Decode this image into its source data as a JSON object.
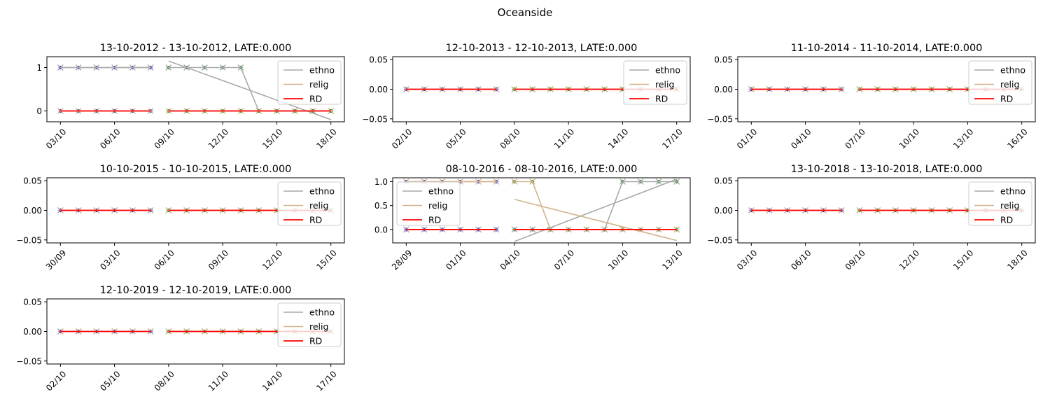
{
  "figure": {
    "suptitle": "Oceanside"
  },
  "colors": {
    "ethno": "#a9a9a9",
    "relig": "#d2b48c",
    "rd": "#ff0000",
    "pre_dot": "#0000ff",
    "post_dot": "#008000"
  },
  "chart_data": [
    {
      "type": "line",
      "title": "13-10-2012 - 13-10-2012, LATE:0.000",
      "x_start": "2012-10-03",
      "x_end": "2012-10-18",
      "xticks": [
        "03/10",
        "06/10",
        "09/10",
        "12/10",
        "15/10",
        "18/10"
      ],
      "ylim": [
        -0.25,
        1.25
      ],
      "yticks": [
        0,
        1
      ],
      "yticklabels": [
        "0",
        "1"
      ],
      "legend": "top-right",
      "pre_dates": [
        "2012-10-03",
        "2012-10-04",
        "2012-10-05",
        "2012-10-06",
        "2012-10-07",
        "2012-10-08"
      ],
      "post_dates": [
        "2012-10-09",
        "2012-10-10",
        "2012-10-11",
        "2012-10-12",
        "2012-10-13",
        "2012-10-14",
        "2012-10-15",
        "2012-10-16",
        "2012-10-17",
        "2012-10-18"
      ],
      "series": [
        {
          "name": "ethno",
          "pre": [
            1,
            1,
            1,
            1,
            1,
            1
          ],
          "post": [
            1,
            1,
            1,
            1,
            1,
            0,
            0,
            0,
            0,
            0
          ],
          "pre_fit": [
            1,
            1
          ],
          "post_fit": [
            1.15,
            -0.2
          ]
        },
        {
          "name": "relig",
          "pre": [
            0,
            0,
            0,
            0,
            0,
            0
          ],
          "post": [
            0,
            0,
            0,
            0,
            0,
            0,
            0,
            0,
            0,
            0
          ],
          "pre_fit": [
            0,
            0
          ],
          "post_fit": [
            0,
            0
          ]
        },
        {
          "name": "RD",
          "pre_fit": [
            0,
            0
          ],
          "post_fit": [
            0,
            0
          ]
        }
      ]
    },
    {
      "type": "line",
      "title": "12-10-2013 - 12-10-2013, LATE:0.000",
      "x_start": "2013-10-02",
      "x_end": "2013-10-17",
      "xticks": [
        "02/10",
        "05/10",
        "08/10",
        "11/10",
        "14/10",
        "17/10"
      ],
      "ylim": [
        -0.055,
        0.055
      ],
      "yticks": [
        -0.05,
        0,
        0.05
      ],
      "yticklabels": [
        "−0.05",
        "0.00",
        "0.05"
      ],
      "legend": "top-right",
      "pre_dates": [
        "2013-10-02",
        "2013-10-03",
        "2013-10-04",
        "2013-10-05",
        "2013-10-06",
        "2013-10-07"
      ],
      "post_dates": [
        "2013-10-08",
        "2013-10-09",
        "2013-10-10",
        "2013-10-11",
        "2013-10-12",
        "2013-10-13",
        "2013-10-14",
        "2013-10-15",
        "2013-10-16",
        "2013-10-17"
      ],
      "series": [
        {
          "name": "ethno",
          "pre": [
            0,
            0,
            0,
            0,
            0,
            0
          ],
          "post": [
            0,
            0,
            0,
            0,
            0,
            0,
            0,
            0,
            0,
            0
          ],
          "pre_fit": [
            0,
            0
          ],
          "post_fit": [
            0,
            0
          ]
        },
        {
          "name": "relig",
          "pre": [
            0,
            0,
            0,
            0,
            0,
            0
          ],
          "post": [
            0,
            0,
            0,
            0,
            0,
            0,
            0,
            0,
            0,
            0
          ],
          "pre_fit": [
            0,
            0
          ],
          "post_fit": [
            0,
            0
          ]
        },
        {
          "name": "RD",
          "pre_fit": [
            0,
            0
          ],
          "post_fit": [
            0,
            0
          ]
        }
      ]
    },
    {
      "type": "line",
      "title": "11-10-2014 - 11-10-2014, LATE:0.000",
      "x_start": "2014-10-01",
      "x_end": "2014-10-16",
      "xticks": [
        "01/10",
        "04/10",
        "07/10",
        "10/10",
        "13/10",
        "16/10"
      ],
      "ylim": [
        -0.055,
        0.055
      ],
      "yticks": [
        -0.05,
        0,
        0.05
      ],
      "yticklabels": [
        "−0.05",
        "0.00",
        "0.05"
      ],
      "legend": "top-right",
      "pre_dates": [
        "2014-10-01",
        "2014-10-02",
        "2014-10-03",
        "2014-10-04",
        "2014-10-05",
        "2014-10-06"
      ],
      "post_dates": [
        "2014-10-07",
        "2014-10-08",
        "2014-10-09",
        "2014-10-10",
        "2014-10-11",
        "2014-10-12",
        "2014-10-13",
        "2014-10-14",
        "2014-10-15",
        "2014-10-16"
      ],
      "series": [
        {
          "name": "ethno",
          "pre": [
            0,
            0,
            0,
            0,
            0,
            0
          ],
          "post": [
            0,
            0,
            0,
            0,
            0,
            0,
            0,
            0,
            0,
            0
          ],
          "pre_fit": [
            0,
            0
          ],
          "post_fit": [
            0,
            0
          ]
        },
        {
          "name": "relig",
          "pre": [
            0,
            0,
            0,
            0,
            0,
            0
          ],
          "post": [
            0,
            0,
            0,
            0,
            0,
            0,
            0,
            0,
            0,
            0
          ],
          "pre_fit": [
            0,
            0
          ],
          "post_fit": [
            0,
            0
          ]
        },
        {
          "name": "RD",
          "pre_fit": [
            0,
            0
          ],
          "post_fit": [
            0,
            0
          ]
        }
      ]
    },
    {
      "type": "line",
      "title": "10-10-2015 - 10-10-2015, LATE:0.000",
      "x_start": "2015-09-30",
      "x_end": "2015-10-15",
      "xticks": [
        "30/09",
        "03/10",
        "06/10",
        "09/10",
        "12/10",
        "15/10"
      ],
      "ylim": [
        -0.055,
        0.055
      ],
      "yticks": [
        -0.05,
        0,
        0.05
      ],
      "yticklabels": [
        "−0.05",
        "0.00",
        "0.05"
      ],
      "legend": "top-right",
      "pre_dates": [
        "2015-09-30",
        "2015-10-01",
        "2015-10-02",
        "2015-10-03",
        "2015-10-04",
        "2015-10-05"
      ],
      "post_dates": [
        "2015-10-06",
        "2015-10-07",
        "2015-10-08",
        "2015-10-09",
        "2015-10-10",
        "2015-10-11",
        "2015-10-12",
        "2015-10-13",
        "2015-10-14",
        "2015-10-15"
      ],
      "series": [
        {
          "name": "ethno",
          "pre": [
            0,
            0,
            0,
            0,
            0,
            0
          ],
          "post": [
            0,
            0,
            0,
            0,
            0,
            0,
            0,
            0,
            0,
            0
          ],
          "pre_fit": [
            0,
            0
          ],
          "post_fit": [
            0,
            0
          ]
        },
        {
          "name": "relig",
          "pre": [
            0,
            0,
            0,
            0,
            0,
            0
          ],
          "post": [
            0,
            0,
            0,
            0,
            0,
            0,
            0,
            0,
            0,
            0
          ],
          "pre_fit": [
            0,
            0
          ],
          "post_fit": [
            0,
            0
          ]
        },
        {
          "name": "RD",
          "pre_fit": [
            0,
            0
          ],
          "post_fit": [
            0,
            0
          ]
        }
      ]
    },
    {
      "type": "line",
      "title": "08-10-2016 - 08-10-2016, LATE:0.000",
      "x_start": "2016-09-28",
      "x_end": "2016-10-13",
      "xticks": [
        "28/09",
        "01/10",
        "04/10",
        "07/10",
        "10/10",
        "13/10"
      ],
      "ylim": [
        -0.28,
        1.08
      ],
      "yticks": [
        0,
        0.5,
        1
      ],
      "yticklabels": [
        "0.0",
        "0.5",
        "1.0"
      ],
      "legend": "top-left",
      "pre_dates": [
        "2016-09-28",
        "2016-09-29",
        "2016-09-30",
        "2016-10-01",
        "2016-10-02",
        "2016-10-03"
      ],
      "post_dates": [
        "2016-10-04",
        "2016-10-05",
        "2016-10-06",
        "2016-10-07",
        "2016-10-08",
        "2016-10-09",
        "2016-10-10",
        "2016-10-11",
        "2016-10-12",
        "2016-10-13"
      ],
      "series": [
        {
          "name": "ethno",
          "pre": [
            0,
            0,
            0,
            0,
            0,
            0
          ],
          "post": [
            0,
            0,
            0,
            0,
            0,
            0,
            1,
            1,
            1,
            1
          ],
          "pre_fit": [
            0,
            0
          ],
          "post_fit": [
            -0.25,
            1.05
          ]
        },
        {
          "name": "relig",
          "pre": [
            1,
            1,
            1,
            1,
            1,
            1
          ],
          "post": [
            1,
            1,
            0,
            0,
            0,
            0,
            0,
            0,
            0,
            0
          ],
          "pre_fit": [
            1,
            1
          ],
          "post_fit": [
            0.63,
            -0.23
          ]
        },
        {
          "name": "RD",
          "pre_fit": [
            0,
            0
          ],
          "post_fit": [
            0,
            0
          ]
        }
      ]
    },
    {
      "type": "line",
      "title": "13-10-2018 - 13-10-2018, LATE:0.000",
      "x_start": "2018-10-03",
      "x_end": "2018-10-18",
      "xticks": [
        "03/10",
        "06/10",
        "09/10",
        "12/10",
        "15/10",
        "18/10"
      ],
      "ylim": [
        -0.055,
        0.055
      ],
      "yticks": [
        -0.05,
        0,
        0.05
      ],
      "yticklabels": [
        "−0.05",
        "0.00",
        "0.05"
      ],
      "legend": "top-right",
      "pre_dates": [
        "2018-10-03",
        "2018-10-04",
        "2018-10-05",
        "2018-10-06",
        "2018-10-07",
        "2018-10-08"
      ],
      "post_dates": [
        "2018-10-09",
        "2018-10-10",
        "2018-10-11",
        "2018-10-12",
        "2018-10-13",
        "2018-10-14",
        "2018-10-15",
        "2018-10-16",
        "2018-10-17",
        "2018-10-18"
      ],
      "series": [
        {
          "name": "ethno",
          "pre": [
            0,
            0,
            0,
            0,
            0,
            0
          ],
          "post": [
            0,
            0,
            0,
            0,
            0,
            0,
            0,
            0,
            0,
            0
          ],
          "pre_fit": [
            0,
            0
          ],
          "post_fit": [
            0,
            0
          ]
        },
        {
          "name": "relig",
          "pre": [
            0,
            0,
            0,
            0,
            0,
            0
          ],
          "post": [
            0,
            0,
            0,
            0,
            0,
            0,
            0,
            0,
            0,
            0
          ],
          "pre_fit": [
            0,
            0
          ],
          "post_fit": [
            0,
            0
          ]
        },
        {
          "name": "RD",
          "pre_fit": [
            0,
            0
          ],
          "post_fit": [
            0,
            0
          ]
        }
      ]
    },
    {
      "type": "line",
      "title": "12-10-2019 - 12-10-2019, LATE:0.000",
      "x_start": "2019-10-02",
      "x_end": "2019-10-17",
      "xticks": [
        "02/10",
        "05/10",
        "08/10",
        "11/10",
        "14/10",
        "17/10"
      ],
      "ylim": [
        -0.055,
        0.055
      ],
      "yticks": [
        -0.05,
        0,
        0.05
      ],
      "yticklabels": [
        "−0.05",
        "0.00",
        "0.05"
      ],
      "legend": "top-right",
      "pre_dates": [
        "2019-10-02",
        "2019-10-03",
        "2019-10-04",
        "2019-10-05",
        "2019-10-06",
        "2019-10-07"
      ],
      "post_dates": [
        "2019-10-08",
        "2019-10-09",
        "2019-10-10",
        "2019-10-11",
        "2019-10-12",
        "2019-10-13",
        "2019-10-14",
        "2019-10-15",
        "2019-10-16",
        "2019-10-17"
      ],
      "series": [
        {
          "name": "ethno",
          "pre": [
            0,
            0,
            0,
            0,
            0,
            0
          ],
          "post": [
            0,
            0,
            0,
            0,
            0,
            0,
            0,
            0,
            0,
            0
          ],
          "pre_fit": [
            0,
            0
          ],
          "post_fit": [
            0,
            0
          ]
        },
        {
          "name": "relig",
          "pre": [
            0,
            0,
            0,
            0,
            0,
            0
          ],
          "post": [
            0,
            0,
            0,
            0,
            0,
            0,
            0,
            0,
            0,
            0
          ],
          "pre_fit": [
            0,
            0
          ],
          "post_fit": [
            0,
            0
          ]
        },
        {
          "name": "RD",
          "pre_fit": [
            0,
            0
          ],
          "post_fit": [
            0,
            0
          ]
        }
      ]
    }
  ]
}
